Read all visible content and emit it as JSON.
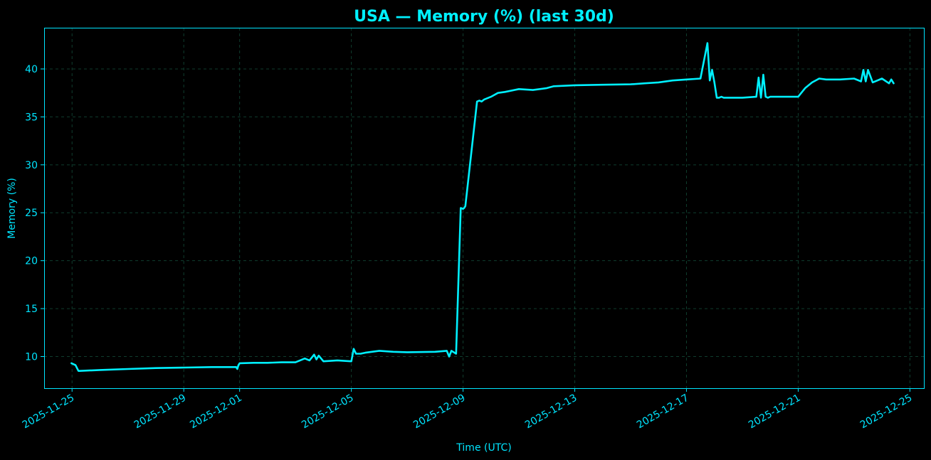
{
  "chart_data": {
    "type": "line",
    "title": "USA — Memory (%) (last 30d)",
    "xlabel": "Time (UTC)",
    "ylabel": "Memory (%)",
    "xlim": [
      "2025-11-24T00:00",
      "2025-12-25T12:00"
    ],
    "ylim": [
      6.7,
      44.3
    ],
    "x_ticks": [
      "2025-11-25",
      "2025-11-29",
      "2025-12-01",
      "2025-12-05",
      "2025-12-09",
      "2025-12-13",
      "2025-12-17",
      "2025-12-21",
      "2025-12-25"
    ],
    "y_ticks": [
      10,
      15,
      20,
      25,
      30,
      35,
      40
    ],
    "grid": true,
    "colors": {
      "line": "#00f0ff",
      "grid": "#0f3d2e",
      "background": "#000000",
      "text": "#00e5ff"
    },
    "series": [
      {
        "x": [
          "2025-11-24T23:30",
          "2025-11-25T03:00",
          "2025-11-25T05:30",
          "2025-11-25T06:30",
          "2025-11-26T00:00",
          "2025-11-27T00:00",
          "2025-11-28T00:00",
          "2025-11-29T00:00",
          "2025-11-30T00:00",
          "2025-11-30T21:00",
          "2025-11-30T22:00",
          "2025-11-30T23:00",
          "2025-12-01T00:00",
          "2025-12-01T12:00",
          "2025-12-02T00:00",
          "2025-12-02T12:00",
          "2025-12-03T00:00",
          "2025-12-03T08:00",
          "2025-12-03T12:00",
          "2025-12-03T16:00",
          "2025-12-03T18:00",
          "2025-12-03T20:00",
          "2025-12-04T00:00",
          "2025-12-04T12:00",
          "2025-12-05T00:00",
          "2025-12-05T02:00",
          "2025-12-05T04:00",
          "2025-12-05T08:00",
          "2025-12-05T12:00",
          "2025-12-06T00:00",
          "2025-12-06T12:00",
          "2025-12-07T00:00",
          "2025-12-08T00:00",
          "2025-12-08T10:00",
          "2025-12-08T12:00",
          "2025-12-08T14:00",
          "2025-12-08T18:00",
          "2025-12-08T22:00",
          "2025-12-09T00:00",
          "2025-12-09T01:00",
          "2025-12-09T02:00",
          "2025-12-09T12:00",
          "2025-12-09T14:00",
          "2025-12-09T16:00",
          "2025-12-09T18:00",
          "2025-12-10T00:00",
          "2025-12-10T06:00",
          "2025-12-10T12:00",
          "2025-12-11T00:00",
          "2025-12-11T12:00",
          "2025-12-12T00:00",
          "2025-12-12T06:00",
          "2025-12-13T00:00",
          "2025-12-14T00:00",
          "2025-12-15T00:00",
          "2025-12-15T12:00",
          "2025-12-16T00:00",
          "2025-12-16T12:00",
          "2025-12-17T00:00",
          "2025-12-17T12:00",
          "2025-12-17T18:00",
          "2025-12-17T20:00",
          "2025-12-17T22:00",
          "2025-12-18T00:00",
          "2025-12-18T02:00",
          "2025-12-18T04:00",
          "2025-12-18T06:00",
          "2025-12-18T08:00",
          "2025-12-19T00:00",
          "2025-12-19T12:00",
          "2025-12-19T14:00",
          "2025-12-19T16:00",
          "2025-12-19T18:00",
          "2025-12-19T20:00",
          "2025-12-19T22:00",
          "2025-12-20T00:00",
          "2025-12-20T12:00",
          "2025-12-21T00:00",
          "2025-12-21T06:00",
          "2025-12-21T12:00",
          "2025-12-21T18:00",
          "2025-12-22T00:00",
          "2025-12-22T12:00",
          "2025-12-23T00:00",
          "2025-12-23T06:00",
          "2025-12-23T08:00",
          "2025-12-23T10:00",
          "2025-12-23T12:00",
          "2025-12-23T16:00",
          "2025-12-24T00:00",
          "2025-12-24T06:00",
          "2025-12-24T08:00",
          "2025-12-24T10:00"
        ],
        "values": [
          9.3,
          9.1,
          8.5,
          8.5,
          8.6,
          8.7,
          8.8,
          8.85,
          8.9,
          8.9,
          8.7,
          9.1,
          9.3,
          9.35,
          9.35,
          9.4,
          9.4,
          9.8,
          9.6,
          10.2,
          9.7,
          10.1,
          9.5,
          9.6,
          9.5,
          10.8,
          10.3,
          10.3,
          10.4,
          10.6,
          10.5,
          10.45,
          10.5,
          10.6,
          10.0,
          10.6,
          10.3,
          25.5,
          25.4,
          25.5,
          25.7,
          36.6,
          36.7,
          36.6,
          36.8,
          37.1,
          37.5,
          37.6,
          37.9,
          37.8,
          38.0,
          38.2,
          38.3,
          38.35,
          38.4,
          38.5,
          38.6,
          38.8,
          38.9,
          39.0,
          42.7,
          38.8,
          39.9,
          38.6,
          37.0,
          37.0,
          37.1,
          37.0,
          37.0,
          37.1,
          39.1,
          37.0,
          39.4,
          37.1,
          37.0,
          37.1,
          37.1,
          37.1,
          38.0,
          38.6,
          39.0,
          38.9,
          38.9,
          39.0,
          38.7,
          39.9,
          38.7,
          39.9,
          38.6,
          39.0,
          38.5,
          38.9,
          38.5
        ]
      }
    ]
  }
}
